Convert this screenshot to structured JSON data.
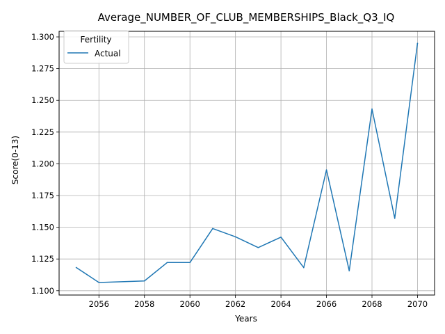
{
  "chart_data": {
    "type": "line",
    "title": "Average_NUMBER_OF_CLUB_MEMBERSHIPS_Black_Q3_IQ",
    "xlabel": "Years",
    "ylabel": "Score(0-13)",
    "xlim": [
      2054.25,
      2070.75
    ],
    "ylim": [
      1.0966,
      1.3044
    ],
    "xticks": [
      2056,
      2058,
      2060,
      2062,
      2064,
      2066,
      2068,
      2070
    ],
    "xtick_labels": [
      "2056",
      "2058",
      "2060",
      "2062",
      "2064",
      "2066",
      "2068",
      "2070"
    ],
    "yticks": [
      1.1,
      1.125,
      1.15,
      1.175,
      1.2,
      1.225,
      1.25,
      1.275,
      1.3
    ],
    "ytick_labels": [
      "1.100",
      "1.125",
      "1.150",
      "1.175",
      "1.200",
      "1.225",
      "1.250",
      "1.275",
      "1.300"
    ],
    "grid": true,
    "legend": {
      "title": "Fertility",
      "placement": "top-left"
    },
    "series": [
      {
        "name": "Actual",
        "color": "#1f77b4",
        "x": [
          2055,
          2056,
          2058,
          2059,
          2060,
          2061,
          2062,
          2063,
          2064,
          2065,
          2066,
          2067,
          2068,
          2069,
          2070
        ],
        "y": [
          1.1183,
          1.1065,
          1.1077,
          1.1222,
          1.1222,
          1.149,
          1.1425,
          1.134,
          1.1422,
          1.1182,
          1.1952,
          1.1157,
          1.2432,
          1.157,
          1.295
        ]
      }
    ]
  }
}
